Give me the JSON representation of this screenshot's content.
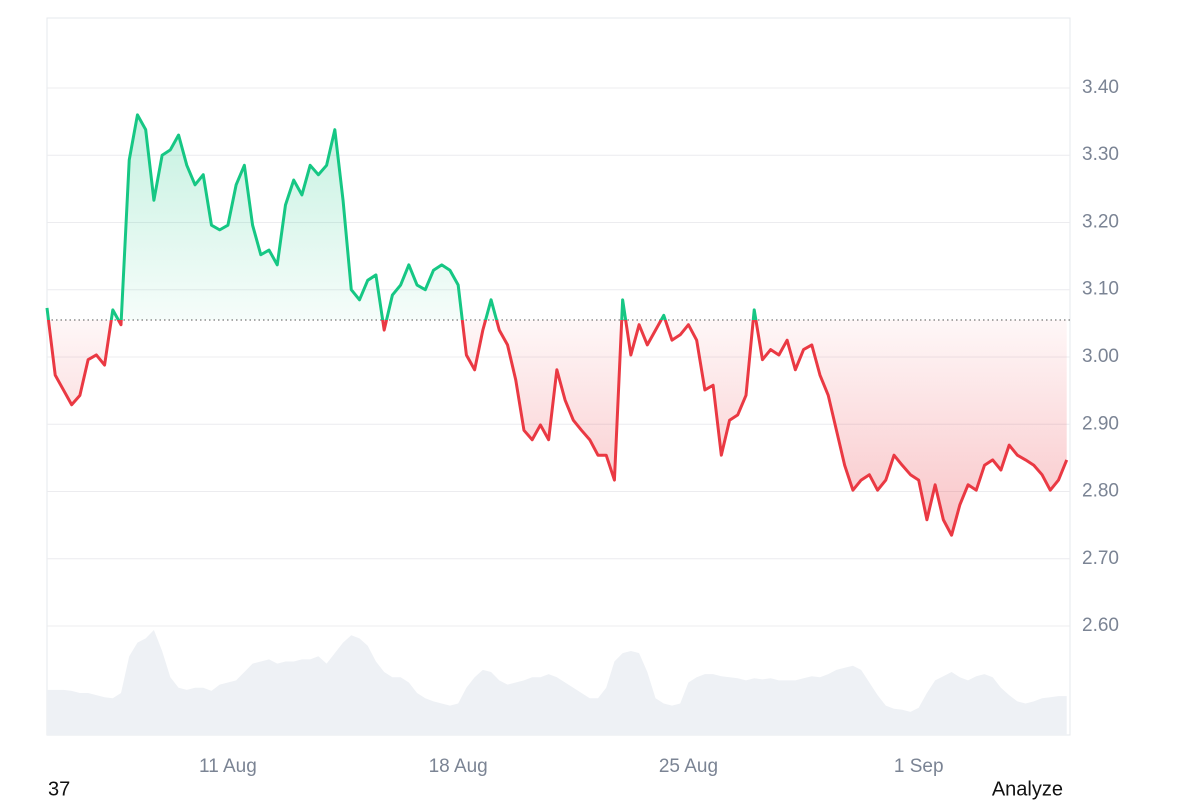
{
  "chart_data": {
    "type": "line",
    "x": [
      5.5,
      5.75,
      6,
      6.25,
      6.5,
      6.75,
      7,
      7.25,
      7.5,
      7.75,
      8,
      8.25,
      8.5,
      8.75,
      9,
      9.25,
      9.5,
      9.75,
      10,
      10.25,
      10.5,
      10.75,
      11,
      11.25,
      11.5,
      11.75,
      12,
      12.25,
      12.5,
      12.75,
      13,
      13.25,
      13.5,
      13.75,
      14,
      14.25,
      14.5,
      14.75,
      15,
      15.25,
      15.5,
      15.75,
      16,
      16.25,
      16.5,
      16.75,
      17,
      17.25,
      17.5,
      17.75,
      18,
      18.25,
      18.5,
      18.75,
      19,
      19.25,
      19.5,
      19.75,
      20,
      20.25,
      20.5,
      20.75,
      21,
      21.25,
      21.5,
      21.75,
      22,
      22.25,
      22.5,
      22.75,
      23,
      23.25,
      23.5,
      23.75,
      24,
      24.25,
      24.5,
      24.75,
      25,
      25.25,
      25.5,
      25.75,
      26,
      26.25,
      26.5,
      26.75,
      27,
      27.25,
      27.5,
      27.75,
      28,
      28.25,
      28.5,
      28.75,
      29,
      29.25,
      29.5,
      29.75,
      30,
      30.25,
      30.5,
      30.75,
      31,
      31.25,
      31.5,
      31.75,
      32,
      32.25,
      32.5,
      32.75,
      33,
      33.25,
      33.5,
      33.75,
      34,
      34.25,
      34.5,
      34.75,
      35,
      35.25,
      35.5,
      35.75,
      36,
      36.25,
      36.5
    ],
    "values": [
      3.073,
      2.973,
      2.951,
      2.929,
      2.943,
      2.996,
      3.003,
      2.988,
      3.07,
      3.048,
      3.293,
      3.36,
      3.338,
      3.233,
      3.3,
      3.308,
      3.33,
      3.285,
      3.256,
      3.271,
      3.196,
      3.189,
      3.196,
      3.256,
      3.285,
      3.196,
      3.152,
      3.159,
      3.137,
      3.226,
      3.263,
      3.241,
      3.285,
      3.271,
      3.285,
      3.338,
      3.233,
      3.1,
      3.085,
      3.114,
      3.122,
      3.04,
      3.092,
      3.107,
      3.137,
      3.107,
      3.1,
      3.129,
      3.137,
      3.129,
      3.107,
      3.003,
      2.981,
      3.04,
      3.085,
      3.04,
      3.018,
      2.966,
      2.891,
      2.877,
      2.899,
      2.877,
      2.981,
      2.936,
      2.906,
      2.891,
      2.877,
      2.854,
      2.854,
      2.817,
      3.085,
      3.003,
      3.048,
      3.018,
      3.04,
      3.062,
      3.025,
      3.033,
      3.048,
      3.025,
      2.951,
      2.958,
      2.854,
      2.906,
      2.914,
      2.943,
      3.07,
      2.996,
      3.011,
      3.003,
      3.025,
      2.981,
      3.011,
      3.018,
      2.973,
      2.943,
      2.891,
      2.839,
      2.802,
      2.817,
      2.825,
      2.802,
      2.817,
      2.854,
      2.839,
      2.825,
      2.817,
      2.758,
      2.81,
      2.758,
      2.735,
      2.78,
      2.81,
      2.802,
      2.839,
      2.847,
      2.832,
      2.869,
      2.854,
      2.847,
      2.839,
      2.825,
      2.802,
      2.817,
      2.847
    ],
    "volume": [
      43,
      43,
      43,
      42,
      40,
      40,
      38,
      36,
      35,
      40,
      75,
      88,
      92,
      100,
      80,
      55,
      45,
      43,
      45,
      45,
      42,
      48,
      50,
      52,
      60,
      68,
      70,
      72,
      68,
      70,
      70,
      72,
      72,
      75,
      68,
      78,
      88,
      95,
      92,
      85,
      70,
      60,
      55,
      55,
      50,
      40,
      35,
      32,
      30,
      28,
      30,
      45,
      55,
      62,
      60,
      52,
      48,
      50,
      52,
      55,
      55,
      58,
      55,
      50,
      45,
      40,
      35,
      35,
      45,
      70,
      78,
      80,
      78,
      60,
      35,
      30,
      28,
      30,
      50,
      55,
      58,
      58,
      56,
      55,
      54,
      52,
      54,
      53,
      54,
      52,
      52,
      52,
      54,
      56,
      55,
      58,
      62,
      64,
      66,
      62,
      50,
      38,
      28,
      25,
      24,
      22,
      26,
      40,
      52,
      56,
      60,
      55,
      52,
      56,
      58,
      55,
      45,
      38,
      32,
      30,
      32,
      35,
      36,
      37,
      37
    ],
    "vlim": [
      0,
      100
    ],
    "baseline": 3.055,
    "up_color": "#16c784",
    "down_color": "#ea3943",
    "volume_color": "#eef1f5",
    "xlim": [
      5.5,
      36.6
    ],
    "xticks": [
      {
        "value": 11,
        "label": "11 Aug"
      },
      {
        "value": 18,
        "label": "18 Aug"
      },
      {
        "value": 25,
        "label": "25 Aug"
      },
      {
        "value": 32,
        "label": "1 Sep"
      }
    ],
    "ylim": [
      2.438,
      3.504
    ],
    "yticks": [
      {
        "value": 2.6,
        "label": "2.60"
      },
      {
        "value": 2.7,
        "label": "2.70"
      },
      {
        "value": 2.8,
        "label": "2.80"
      },
      {
        "value": 2.9,
        "label": "2.90"
      },
      {
        "value": 3.0,
        "label": "3.00"
      },
      {
        "value": 3.1,
        "label": "3.10"
      },
      {
        "value": 3.2,
        "label": "3.20"
      },
      {
        "value": 3.3,
        "label": "3.30"
      },
      {
        "value": 3.4,
        "label": "3.40"
      }
    ],
    "grid": true
  },
  "page": {
    "footer_left": "37",
    "footer_right": "Analyze"
  }
}
